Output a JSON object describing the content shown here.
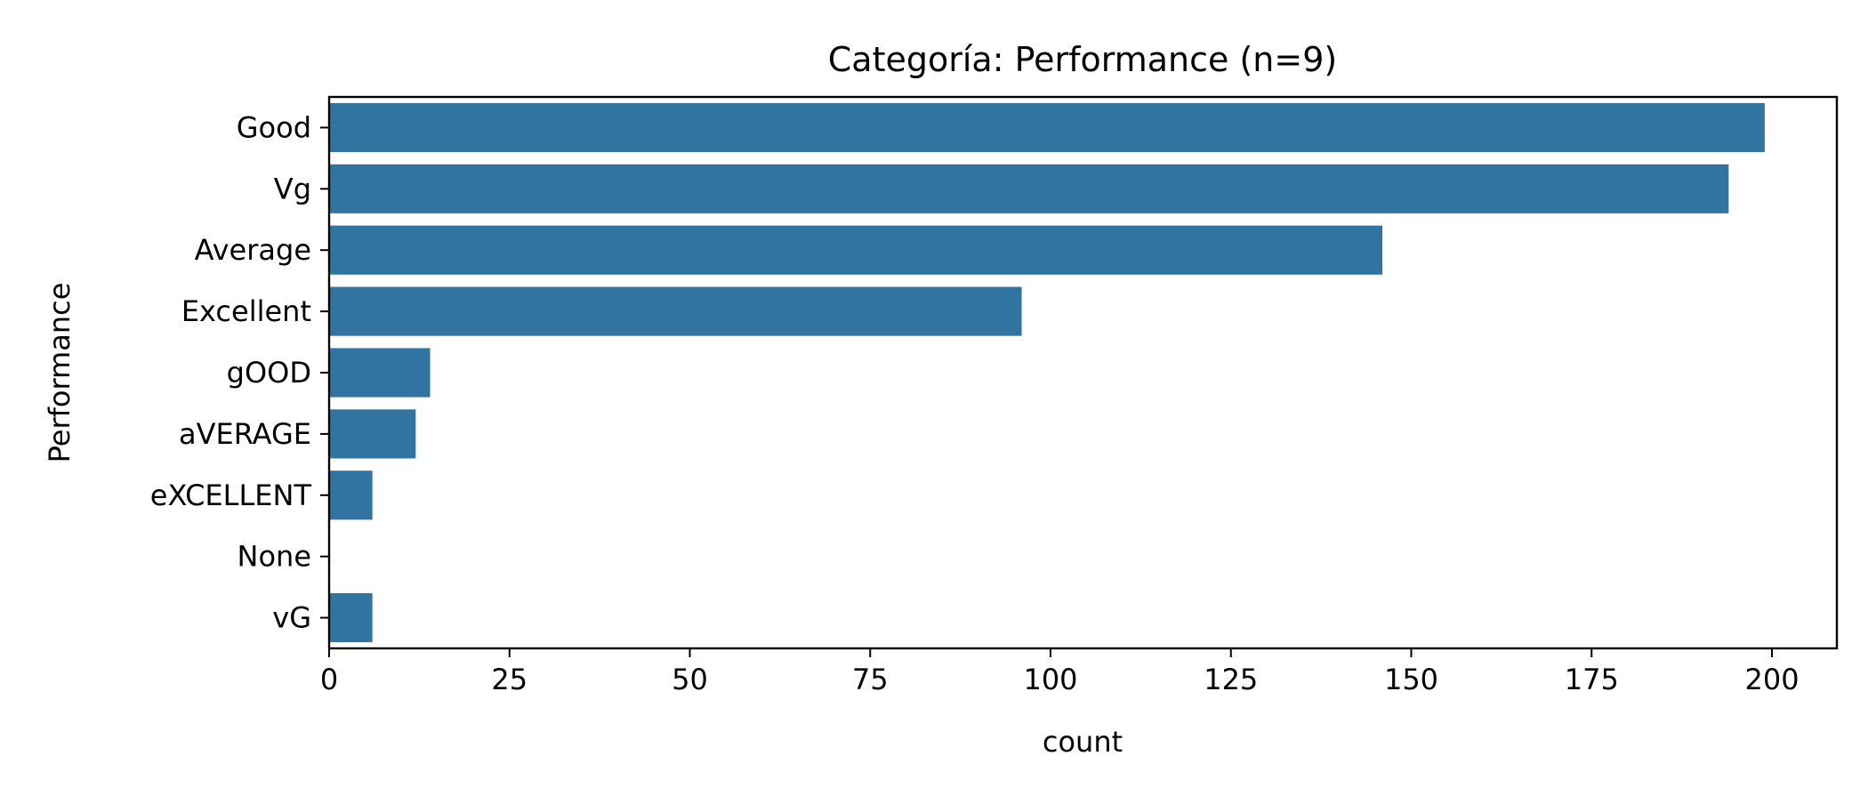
{
  "chart_data": {
    "type": "bar",
    "orientation": "horizontal",
    "title": "Categoría: Performance (n=9)",
    "xlabel": "count",
    "ylabel": "Performance",
    "categories": [
      "Good",
      "Vg",
      "Average",
      "Excellent",
      "gOOD",
      "aVERAGE",
      "eXCELLENT",
      "None",
      "vG"
    ],
    "values": [
      199,
      194,
      146,
      96,
      14,
      12,
      6,
      0,
      6
    ],
    "xlim": [
      0,
      209
    ],
    "xticks": [
      0,
      25,
      50,
      75,
      100,
      125,
      150,
      175,
      200
    ],
    "grid": false,
    "legend": "none",
    "bar_color": "#3274a1"
  }
}
